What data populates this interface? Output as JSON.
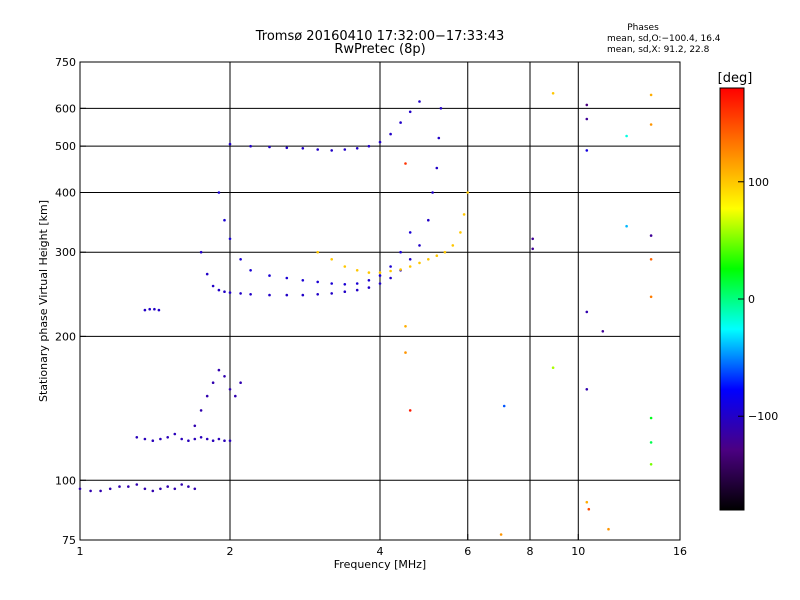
{
  "chart_data": {
    "type": "scatter",
    "title": "Tromsø 20160410 17:32:00−17:33:43",
    "subtitle": "RwPretec (8p)",
    "xlabel": "Frequency [MHz]",
    "ylabel": "Stationary phase Virtual Height [km]",
    "x_scale": "log",
    "y_scale": "log",
    "xlim": [
      1,
      16
    ],
    "ylim": [
      75,
      750
    ],
    "x_ticks": [
      1,
      2,
      4,
      6,
      8,
      10,
      16
    ],
    "y_ticks": [
      75,
      100,
      200,
      300,
      400,
      500,
      600,
      750
    ],
    "x_grid": [
      2,
      4,
      6,
      8,
      10
    ],
    "y_grid": [
      100,
      200,
      300,
      400,
      500,
      600
    ],
    "grid": true,
    "phase_box": {
      "title": "Phases",
      "line1": "mean, sd,O:−100.4, 16.4",
      "line2": "mean, sd,X:  91.2, 22.8"
    },
    "colorbar": {
      "label": "[deg]",
      "ticks": [
        100,
        0,
        -100
      ],
      "tick_labels": [
        "100",
        "0",
        "−100"
      ],
      "range": [
        -180,
        180
      ],
      "colors": [
        "#000000",
        "#4b0082",
        "#0000ff",
        "#00ffff",
        "#00ff00",
        "#ffff00",
        "#ff8000",
        "#ff0000"
      ]
    },
    "series": [
      {
        "phase": -110,
        "x": [
          1.0,
          1.05,
          1.1,
          1.15,
          1.2,
          1.25,
          1.3,
          1.35,
          1.4,
          1.45,
          1.5,
          1.55,
          1.6,
          1.65,
          1.7
        ],
        "y": [
          96,
          95,
          95,
          96,
          97,
          97,
          98,
          96,
          95,
          96,
          97,
          96,
          98,
          97,
          96
        ]
      },
      {
        "phase": -105,
        "x": [
          1.3,
          1.35,
          1.4,
          1.45,
          1.5,
          1.55,
          1.6,
          1.65,
          1.7,
          1.75,
          1.8,
          1.85,
          1.9,
          1.95,
          2.0
        ],
        "y": [
          123,
          122,
          121,
          122,
          123,
          125,
          122,
          121,
          122,
          123,
          122,
          121,
          122,
          121,
          121
        ]
      },
      {
        "phase": -100,
        "x": [
          1.35,
          1.38,
          1.41,
          1.44
        ],
        "y": [
          227,
          228,
          228,
          227
        ]
      },
      {
        "phase": -110,
        "x": [
          1.7,
          1.75,
          1.8,
          1.85,
          1.9,
          1.95,
          2.0,
          2.05,
          2.1
        ],
        "y": [
          130,
          140,
          150,
          160,
          170,
          165,
          155,
          150,
          160
        ]
      },
      {
        "phase": -100,
        "x": [
          1.75,
          1.8,
          1.85,
          1.9,
          1.95,
          2.0,
          2.1,
          2.2,
          2.4,
          2.6,
          2.8,
          3.0,
          3.2,
          3.4,
          3.6,
          3.8,
          4.0,
          4.2,
          4.4,
          4.6,
          4.8,
          5.0,
          5.1,
          5.2,
          5.25,
          5.3
        ],
        "y": [
          300,
          270,
          255,
          250,
          248,
          247,
          246,
          245,
          244,
          244,
          244,
          245,
          246,
          248,
          250,
          253,
          258,
          265,
          275,
          290,
          310,
          350,
          400,
          450,
          520,
          600
        ]
      },
      {
        "phase": -95,
        "x": [
          1.9,
          1.95,
          2.0,
          2.1,
          2.2,
          2.4,
          2.6,
          2.8,
          3.0,
          3.2,
          3.4,
          3.6,
          3.8,
          4.0,
          4.2,
          4.4,
          4.6
        ],
        "y": [
          400,
          350,
          320,
          290,
          275,
          268,
          265,
          262,
          260,
          258,
          257,
          258,
          262,
          268,
          280,
          300,
          330
        ]
      },
      {
        "phase": -100,
        "x": [
          2.0,
          2.2,
          2.4,
          2.6,
          2.8,
          3.0,
          3.2,
          3.4,
          3.6,
          3.8,
          4.0,
          4.2,
          4.4,
          4.6,
          4.8
        ],
        "y": [
          505,
          500,
          498,
          496,
          495,
          492,
          490,
          492,
          495,
          500,
          510,
          530,
          560,
          590,
          620
        ]
      },
      {
        "phase": 100,
        "x": [
          3.0,
          3.2,
          3.4,
          3.6,
          3.8,
          4.0,
          4.2,
          4.4,
          4.6,
          4.8,
          5.0,
          5.2,
          5.4,
          5.6,
          5.8,
          5.9,
          6.0
        ],
        "y": [
          300,
          290,
          280,
          275,
          272,
          272,
          274,
          276,
          280,
          285,
          290,
          295,
          300,
          310,
          330,
          360,
          400
        ]
      }
    ],
    "scattered_points": [
      {
        "x": 7.0,
        "y": 77,
        "phase": 120
      },
      {
        "x": 7.1,
        "y": 143,
        "phase": -60
      },
      {
        "x": 8.1,
        "y": 320,
        "phase": -120
      },
      {
        "x": 8.1,
        "y": 305,
        "phase": -120
      },
      {
        "x": 8.9,
        "y": 645,
        "phase": 100
      },
      {
        "x": 8.9,
        "y": 172,
        "phase": 60
      },
      {
        "x": 10.4,
        "y": 610,
        "phase": -130
      },
      {
        "x": 10.4,
        "y": 570,
        "phase": -120
      },
      {
        "x": 10.4,
        "y": 490,
        "phase": -90
      },
      {
        "x": 10.4,
        "y": 225,
        "phase": -110
      },
      {
        "x": 10.4,
        "y": 155,
        "phase": -110
      },
      {
        "x": 10.4,
        "y": 90,
        "phase": 110
      },
      {
        "x": 10.5,
        "y": 87,
        "phase": 150
      },
      {
        "x": 11.2,
        "y": 205,
        "phase": -120
      },
      {
        "x": 11.5,
        "y": 79,
        "phase": 120
      },
      {
        "x": 12.5,
        "y": 525,
        "phase": -20
      },
      {
        "x": 12.5,
        "y": 340,
        "phase": -40
      },
      {
        "x": 14.0,
        "y": 640,
        "phase": 110
      },
      {
        "x": 14.0,
        "y": 555,
        "phase": 120
      },
      {
        "x": 14.0,
        "y": 325,
        "phase": -120
      },
      {
        "x": 14.0,
        "y": 290,
        "phase": 140
      },
      {
        "x": 14.0,
        "y": 242,
        "phase": 130
      },
      {
        "x": 14.0,
        "y": 135,
        "phase": 20
      },
      {
        "x": 14.0,
        "y": 120,
        "phase": 10
      },
      {
        "x": 14.0,
        "y": 108,
        "phase": 50
      },
      {
        "x": 4.5,
        "y": 210,
        "phase": 110
      },
      {
        "x": 4.5,
        "y": 185,
        "phase": 120
      },
      {
        "x": 4.5,
        "y": 460,
        "phase": 160
      },
      {
        "x": 4.6,
        "y": 140,
        "phase": 170
      }
    ]
  }
}
